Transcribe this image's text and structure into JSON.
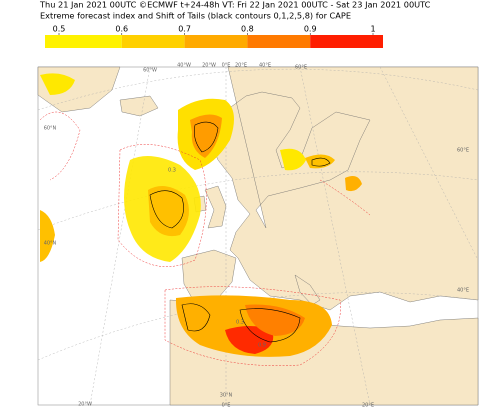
{
  "header": {
    "line1": "Thu 21 Jan 2021 00UTC ©ECMWF t+24-48h  VT: Fri 22 Jan 2021 00UTC - Sat 23 Jan 2021 00UTC",
    "line2": "Extreme forecast index and Shift of Tails (black contours 0,1,2,5,8) for CAPE"
  },
  "colorbar": {
    "ticks": [
      0.5,
      0.6,
      0.7,
      0.8,
      0.9,
      1
    ],
    "colors": [
      "#fff200",
      "#ffd000",
      "#ffaa00",
      "#ff7a00",
      "#ff1e00"
    ]
  },
  "map": {
    "top_labels": [
      "60°W",
      "40°W",
      "20°W",
      "0°E",
      "20°E",
      "40°E",
      "60°E"
    ],
    "left_labels": [
      "60°N",
      "40°N"
    ],
    "right_labels": [
      "60°E",
      "40°E"
    ],
    "bottom_labels": [
      "20°W",
      "30°N",
      "0°E",
      "20°E"
    ],
    "contour_labels": [
      "0.3",
      "0.3",
      "0.9"
    ]
  }
}
